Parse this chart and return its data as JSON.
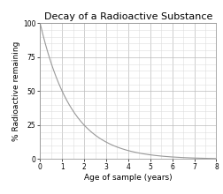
{
  "title": "Decay of a Radioactive Substance",
  "xlabel": "Age of sample (years)",
  "ylabel": "% Radioactive remaining",
  "xlim": [
    0,
    8
  ],
  "ylim": [
    0,
    100
  ],
  "xticks_major": [
    0,
    1,
    2,
    3,
    4,
    5,
    6,
    7,
    8
  ],
  "yticks_major": [
    0,
    25,
    50,
    75,
    100
  ],
  "x_minor_spacing": 0.5,
  "y_minor_spacing": 5,
  "line_color": "#999999",
  "background_color": "#ffffff",
  "grid_color_major": "#bbbbbb",
  "grid_color_minor": "#dddddd",
  "title_fontsize": 8.0,
  "label_fontsize": 6.5,
  "tick_fontsize": 5.5,
  "half_life": 1.0,
  "decay_constant": 0.693147
}
